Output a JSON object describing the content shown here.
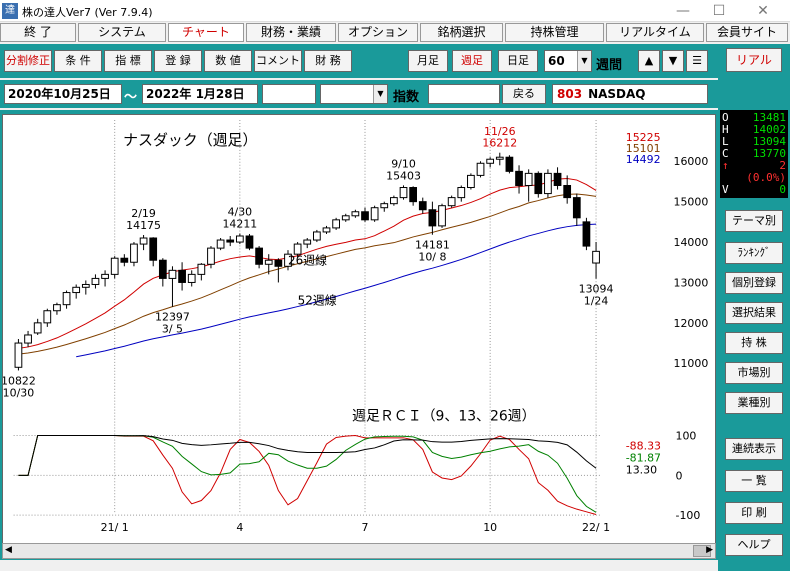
{
  "window": {
    "title": "株の達人Ver7 (Ver 7.9.4)",
    "app_icon": "達",
    "minimize": "—",
    "maximize": "☐",
    "close": "✕"
  },
  "menu": {
    "tabs": [
      {
        "label": "終 了",
        "active": false
      },
      {
        "label": "システム",
        "active": false
      },
      {
        "label": "チャート",
        "active": true
      },
      {
        "label": "財務・業績",
        "active": false
      },
      {
        "label": "オプション",
        "active": false
      },
      {
        "label": "銘柄選択",
        "active": false
      },
      {
        "label": "持株管理",
        "active": false
      },
      {
        "label": "リアルタイム",
        "active": false
      },
      {
        "label": "会員サイト",
        "active": false
      }
    ]
  },
  "toolbar": {
    "buttons": [
      {
        "label": "分割修正",
        "red": true
      },
      {
        "label": "条 件",
        "red": false
      },
      {
        "label": "指 標",
        "red": false
      },
      {
        "label": "登 録",
        "red": false
      },
      {
        "label": "数 値",
        "red": false
      },
      {
        "label": "コメント",
        "red": false
      },
      {
        "label": "財 務",
        "red": false
      }
    ],
    "period_buttons": [
      {
        "label": "月足",
        "red": false
      },
      {
        "label": "週足",
        "red": true
      },
      {
        "label": "日足",
        "red": false
      }
    ],
    "period_count": "60",
    "period_unit": "週間",
    "up_icon": "▲",
    "down_icon": "▼",
    "menu_icon": "☰"
  },
  "datebar": {
    "start_date": "2020年10月25日",
    "separator": "～",
    "end_date": "2022年  1月28日",
    "category": "指数",
    "back_label": "戻る",
    "code": "803",
    "name": "NASDAQ"
  },
  "right_panel": {
    "real_label": "リアル",
    "ohlc": [
      {
        "k": "O",
        "v": "13481",
        "red": false
      },
      {
        "k": "H",
        "v": "14002",
        "red": false
      },
      {
        "k": "L",
        "v": "13094",
        "red": false
      },
      {
        "k": "C",
        "v": "13770",
        "red": false
      },
      {
        "k": "↑",
        "v": "2",
        "red": true
      },
      {
        "k": "",
        "v": "(0.0%)",
        "red": true
      },
      {
        "k": "V",
        "v": "0",
        "red": false
      }
    ],
    "buttons": [
      "テーマ別",
      "ﾗﾝｷﾝｸﾞ",
      "個別登録",
      "選択結果",
      "持 株",
      "市場別",
      "業種別",
      "連続表示",
      "一 覧",
      "印 刷",
      "ヘルプ"
    ]
  },
  "chart_data": {
    "type": "candlestick",
    "title": "ナスダック（週足）",
    "price_axis": {
      "min": 10000,
      "max": 16800,
      "ticks": [
        11000,
        12000,
        13000,
        14000,
        15000,
        16000
      ]
    },
    "ma_legend": [
      {
        "value": "15225",
        "color": "#d00000"
      },
      {
        "value": "15101",
        "color": "#804000"
      },
      {
        "value": "14492",
        "color": "#0000c0"
      }
    ],
    "ma_labels": [
      {
        "text": "26週線",
        "x": 28,
        "y": 13440
      },
      {
        "text": "52週線",
        "x": 29,
        "y": 12450
      }
    ],
    "candles": [
      [
        10900,
        11600,
        10822,
        11500
      ],
      [
        11500,
        11800,
        11400,
        11700
      ],
      [
        11750,
        12100,
        11700,
        12000
      ],
      [
        12000,
        12350,
        11900,
        12300
      ],
      [
        12300,
        12500,
        12200,
        12450
      ],
      [
        12450,
        12800,
        12350,
        12750
      ],
      [
        12750,
        12950,
        12600,
        12880
      ],
      [
        12880,
        13050,
        12700,
        12950
      ],
      [
        12950,
        13200,
        12850,
        13100
      ],
      [
        13100,
        13300,
        12900,
        13200
      ],
      [
        13200,
        13650,
        13100,
        13600
      ],
      [
        13600,
        13700,
        13400,
        13500
      ],
      [
        13500,
        14000,
        13400,
        13950
      ],
      [
        13950,
        14175,
        13800,
        14100
      ],
      [
        14100,
        14120,
        13400,
        13550
      ],
      [
        13550,
        13600,
        12900,
        13100
      ],
      [
        13100,
        13400,
        12397,
        13300
      ],
      [
        13300,
        13500,
        12800,
        13000
      ],
      [
        13000,
        13300,
        12900,
        13200
      ],
      [
        13200,
        13480,
        13050,
        13450
      ],
      [
        13450,
        13900,
        13350,
        13850
      ],
      [
        13850,
        14100,
        13800,
        14050
      ],
      [
        14050,
        14150,
        13900,
        14000
      ],
      [
        14000,
        14211,
        13950,
        14150
      ],
      [
        14150,
        14200,
        13800,
        13850
      ],
      [
        13850,
        13900,
        13350,
        13450
      ],
      [
        13450,
        13700,
        13200,
        13550
      ],
      [
        13550,
        13600,
        13000,
        13400
      ],
      [
        13400,
        13800,
        13300,
        13700
      ],
      [
        13700,
        14000,
        13600,
        13950
      ],
      [
        13950,
        14100,
        13850,
        14050
      ],
      [
        14050,
        14300,
        14000,
        14250
      ],
      [
        14250,
        14400,
        14200,
        14350
      ],
      [
        14350,
        14600,
        14300,
        14550
      ],
      [
        14550,
        14700,
        14500,
        14650
      ],
      [
        14650,
        14800,
        14600,
        14750
      ],
      [
        14750,
        14850,
        14500,
        14550
      ],
      [
        14550,
        14900,
        14500,
        14850
      ],
      [
        14850,
        15000,
        14750,
        14950
      ],
      [
        14950,
        15150,
        14900,
        15100
      ],
      [
        15100,
        15403,
        15050,
        15350
      ],
      [
        15350,
        15380,
        14900,
        15000
      ],
      [
        15000,
        15100,
        14700,
        14800
      ],
      [
        14800,
        15000,
        14181,
        14400
      ],
      [
        14400,
        14950,
        14350,
        14900
      ],
      [
        14900,
        15150,
        14850,
        15100
      ],
      [
        15100,
        15400,
        15000,
        15350
      ],
      [
        15350,
        15700,
        15300,
        15650
      ],
      [
        15650,
        16000,
        15600,
        15950
      ],
      [
        15950,
        16100,
        15850,
        16050
      ],
      [
        16050,
        16212,
        15900,
        16100
      ],
      [
        16100,
        16150,
        15700,
        15750
      ],
      [
        15750,
        15900,
        15200,
        15400
      ],
      [
        15400,
        15800,
        15000,
        15700
      ],
      [
        15700,
        15750,
        15100,
        15200
      ],
      [
        15200,
        15800,
        15100,
        15700
      ],
      [
        15700,
        15850,
        15300,
        15400
      ],
      [
        15400,
        15650,
        14950,
        15100
      ],
      [
        15100,
        15200,
        14400,
        14600
      ],
      [
        14500,
        14600,
        13800,
        13900
      ],
      [
        13481,
        14002,
        13094,
        13770
      ]
    ],
    "annotations": [
      {
        "label": "10822\n10/30",
        "idx": 0,
        "pos": "below",
        "color": "#000"
      },
      {
        "label": "2/19\n14175",
        "idx": 13,
        "pos": "above",
        "color": "#000"
      },
      {
        "label": "12397\n3/ 5",
        "idx": 16,
        "pos": "below",
        "color": "#000"
      },
      {
        "label": "4/30\n14211",
        "idx": 23,
        "pos": "above",
        "color": "#000"
      },
      {
        "label": "9/10\n15403",
        "idx": 40,
        "pos": "above",
        "color": "#000"
      },
      {
        "label": "14181\n10/ 8",
        "idx": 43,
        "pos": "below",
        "color": "#000"
      },
      {
        "label": "11/26\n16212",
        "idx": 50,
        "pos": "above",
        "color": "#d00000"
      },
      {
        "label": "13094\n1/24",
        "idx": 60,
        "pos": "below",
        "color": "#000"
      }
    ],
    "x_ticks": [
      {
        "label": "21/ 1",
        "idx": 10
      },
      {
        "label": "4",
        "idx": 23
      },
      {
        "label": "7",
        "idx": 36
      },
      {
        "label": "10",
        "idx": 49
      },
      {
        "label": "22/ 1",
        "idx": 60
      }
    ],
    "rci": {
      "title": "週足ＲＣＩ（9、13、26週）",
      "ylim": [
        -100,
        100
      ],
      "ticks": [
        100,
        0,
        -100
      ],
      "legend": [
        {
          "value": "-88.33",
          "color": "#d00000"
        },
        {
          "value": "-81.87",
          "color": "#008000"
        },
        {
          "value": "13.30",
          "color": "#000000"
        }
      ]
    }
  }
}
